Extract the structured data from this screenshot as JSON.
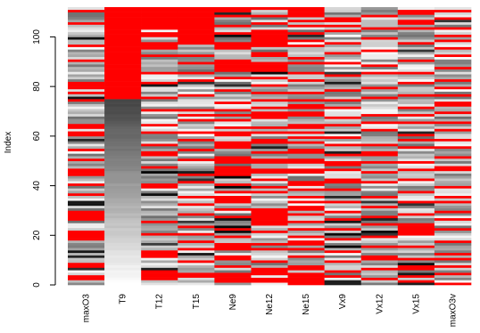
{
  "chart_data": {
    "type": "heatmap",
    "title": "",
    "xlabel": "",
    "ylabel": "Index",
    "ylim": [
      0,
      112
    ],
    "y_ticks": [
      0,
      20,
      40,
      60,
      80,
      100
    ],
    "x_ticks": [
      "maxO3",
      "T9",
      "T12",
      "T15",
      "Ne9",
      "Ne12",
      "Ne15",
      "Vx9",
      "Vx12",
      "Vx15",
      "maxO3v"
    ],
    "rows": 112,
    "legend": "none",
    "grid": false,
    "missing_color": "#ff0000",
    "color_scale": "grey (low = white, high = black)",
    "columns": [
      {
        "name": "maxO3",
        "missing": [
          2,
          3,
          7,
          8,
          18,
          19,
          20,
          21,
          26,
          27,
          28,
          29,
          36,
          40,
          44,
          45,
          46,
          50,
          54,
          60,
          61,
          63,
          64,
          74,
          77,
          79,
          80,
          81,
          90,
          96,
          105,
          110
        ]
      },
      {
        "name": "T9",
        "missing": [
          75,
          76,
          77,
          78,
          79,
          80,
          81,
          82,
          83,
          84,
          85,
          86,
          87,
          88,
          89,
          90,
          91,
          92,
          93,
          94,
          95,
          96,
          97,
          98,
          99,
          100,
          101,
          102,
          103,
          104,
          105,
          106,
          107,
          108,
          109,
          110,
          111
        ]
      },
      {
        "name": "T12",
        "missing": [
          2,
          3,
          4,
          5,
          11,
          12,
          13,
          20,
          25,
          39,
          40,
          47,
          52,
          53,
          56,
          61,
          64,
          70,
          75,
          81,
          85,
          92,
          95,
          96,
          97,
          100,
          101,
          103,
          104,
          105,
          106,
          107,
          108,
          109,
          110,
          111
        ]
      },
      {
        "name": "T15",
        "missing": [
          3,
          4,
          9,
          14,
          17,
          20,
          23,
          28,
          32,
          35,
          41,
          44,
          50,
          54,
          58,
          61,
          66,
          68,
          70,
          76,
          82,
          85,
          89,
          92,
          97,
          98,
          99,
          100,
          101,
          102,
          103,
          104,
          105,
          106,
          107,
          108,
          109,
          110,
          111
        ]
      },
      {
        "name": "Ne9",
        "missing": [
          1,
          2,
          3,
          4,
          7,
          10,
          11,
          14,
          15,
          16,
          19,
          22,
          27,
          30,
          33,
          34,
          35,
          37,
          40,
          44,
          45,
          46,
          47,
          49,
          50,
          51,
          55,
          56,
          57,
          60,
          61,
          63,
          66,
          68,
          70,
          73,
          78,
          83,
          86,
          87,
          88,
          89,
          90,
          95,
          96,
          97,
          101,
          104,
          108,
          110,
          111
        ]
      },
      {
        "name": "Ne12",
        "missing": [
          1,
          2,
          4,
          5,
          6,
          9,
          14,
          16,
          21,
          24,
          25,
          26,
          27,
          28,
          29,
          30,
          37,
          39,
          42,
          45,
          46,
          49,
          50,
          53,
          57,
          58,
          61,
          63,
          67,
          68,
          69,
          71,
          74,
          77,
          80,
          83,
          86,
          87,
          88,
          89,
          92,
          93,
          96,
          97,
          98,
          99,
          100,
          101,
          102,
          105,
          108,
          111
        ]
      },
      {
        "name": "Ne15",
        "missing": [
          0,
          1,
          2,
          3,
          4,
          6,
          7,
          11,
          14,
          16,
          17,
          19,
          22,
          25,
          28,
          30,
          31,
          33,
          35,
          38,
          40,
          41,
          45,
          46,
          49,
          50,
          53,
          54,
          57,
          59,
          61,
          63,
          64,
          68,
          69,
          71,
          72,
          74,
          77,
          82,
          85,
          89,
          91,
          96,
          98,
          101,
          104,
          106,
          108,
          109,
          110,
          111
        ]
      },
      {
        "name": "Vx9",
        "missing": [
          3,
          5,
          9,
          13,
          18,
          22,
          26,
          29,
          33,
          38,
          41,
          42,
          46,
          48,
          49,
          52,
          56,
          59,
          64,
          67,
          71,
          74,
          78,
          84,
          89,
          93,
          97,
          102,
          104,
          106,
          107
        ]
      },
      {
        "name": "Vx12",
        "missing": [
          2,
          6,
          10,
          11,
          15,
          19,
          24,
          27,
          31,
          35,
          41,
          45,
          49,
          52,
          53,
          56,
          62,
          65,
          68,
          75,
          79,
          85,
          88,
          94,
          99,
          103,
          108
        ]
      },
      {
        "name": "Vx15",
        "missing": [
          1,
          3,
          6,
          7,
          10,
          15,
          20,
          21,
          22,
          23,
          24,
          28,
          33,
          37,
          42,
          46,
          49,
          55,
          58,
          60,
          65,
          68,
          71,
          76,
          81,
          85,
          90,
          97,
          103,
          105,
          106,
          109,
          110
        ]
      },
      {
        "name": "maxO3v",
        "missing": [
          0,
          4,
          7,
          10,
          12,
          17,
          22,
          26,
          29,
          33,
          35,
          39,
          46,
          47,
          51,
          55,
          58,
          62,
          65,
          69,
          72,
          73,
          76,
          79,
          82,
          87,
          92,
          95,
          98,
          100,
          103,
          107,
          110
        ]
      }
    ]
  }
}
